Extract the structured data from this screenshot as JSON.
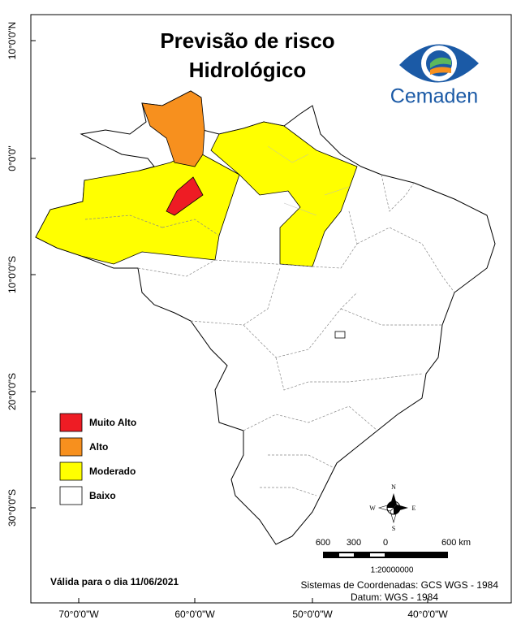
{
  "header": {
    "title_lines": [
      "Previsão de risco",
      "Hidrológico"
    ],
    "logo": "Cemaden"
  },
  "legend": {
    "items": [
      {
        "label": "Muito Alto",
        "color": "#ee1c24"
      },
      {
        "label": "Alto",
        "color": "#f7901e"
      },
      {
        "label": "Moderado",
        "color": "#ffff00"
      },
      {
        "label": "Baixo",
        "color": "#ffffff"
      }
    ]
  },
  "axes": {
    "latitude": [
      "10°0'0\"N",
      "0°0'0\"",
      "10°0'0\"S",
      "20°0'0\"S",
      "30°0'0\"S"
    ],
    "longitude": [
      "70°0'0\"W",
      "60°0'0\"W",
      "50°0'0\"W",
      "40°0'0\"W"
    ]
  },
  "compass": {
    "n": "N",
    "s": "S",
    "e": "E",
    "w": "W"
  },
  "scale_bar": {
    "labels": [
      "600",
      "300",
      "0",
      "600 km"
    ],
    "ratio": "1:20000000"
  },
  "footer": {
    "validity": "Válida para o dia 11/06/2021",
    "coordinate_system": "Sistemas de Coordenadas: GCS WGS - 1984",
    "datum": "Datum: WGS - 1984"
  }
}
